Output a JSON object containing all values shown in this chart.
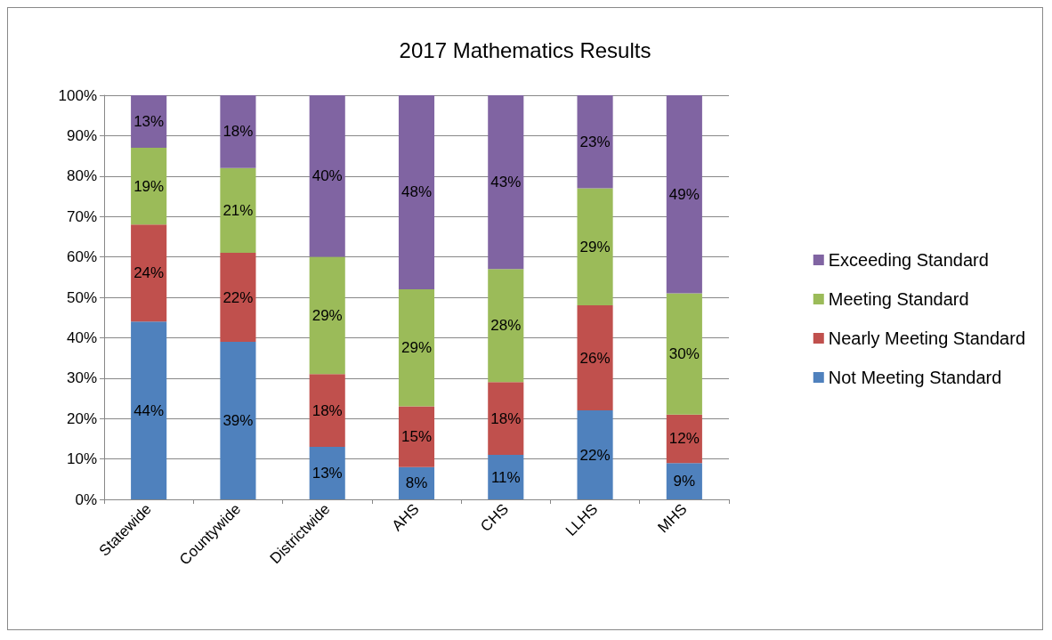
{
  "chart_data": {
    "type": "bar",
    "title": "2017 Mathematics Results",
    "stacked": true,
    "categories": [
      "Statewide",
      "Countywide",
      "Districtwide",
      "AHS",
      "CHS",
      "LLHS",
      "MHS"
    ],
    "series": [
      {
        "name": "Not Meeting Standard",
        "color": "#4f81bd",
        "values": [
          44,
          39,
          13,
          8,
          11,
          22,
          9
        ],
        "value_labels": [
          "44%",
          "39%",
          "13%",
          "8%",
          "11%",
          "22%",
          "9%"
        ]
      },
      {
        "name": "Nearly Meeting Standard",
        "color": "#c0504d",
        "values": [
          24,
          22,
          18,
          15,
          18,
          26,
          12
        ],
        "value_labels": [
          "24%",
          "22%",
          "18%",
          "15%",
          "18%",
          "26%",
          "12%"
        ]
      },
      {
        "name": "Meeting Standard",
        "color": "#9bbb59",
        "values": [
          19,
          21,
          29,
          29,
          28,
          29,
          30
        ],
        "value_labels": [
          "19%",
          "21%",
          "29%",
          "29%",
          "28%",
          "29%",
          "30%"
        ]
      },
      {
        "name": "Exceeding Standard",
        "color": "#8064a2",
        "values": [
          13,
          18,
          40,
          48,
          43,
          23,
          49
        ],
        "value_labels": [
          "13%",
          "18%",
          "40%",
          "48%",
          "43%",
          "23%",
          "49%"
        ]
      }
    ],
    "ylim": [
      0,
      100
    ],
    "yticks": [
      {
        "value": 0,
        "label": "0%"
      },
      {
        "value": 10,
        "label": "10%"
      },
      {
        "value": 20,
        "label": "20%"
      },
      {
        "value": 30,
        "label": "30%"
      },
      {
        "value": 40,
        "label": "40%"
      },
      {
        "value": 50,
        "label": "50%"
      },
      {
        "value": 60,
        "label": "60%"
      },
      {
        "value": 70,
        "label": "70%"
      },
      {
        "value": 80,
        "label": "80%"
      },
      {
        "value": 90,
        "label": "90%"
      },
      {
        "value": 100,
        "label": "100%"
      }
    ],
    "grid": "y",
    "legend": "right"
  }
}
